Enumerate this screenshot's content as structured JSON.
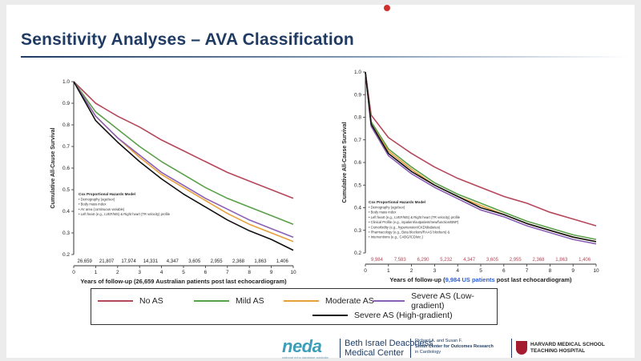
{
  "slide": {
    "title": "Sensitivity Analyses – AVA Classification"
  },
  "legend": {
    "items": [
      {
        "label": "No AS",
        "color": "#b5475a"
      },
      {
        "label": "Mild AS",
        "color": "#5aa04a"
      },
      {
        "label": "Moderate AS",
        "color": "#e6a03a"
      },
      {
        "label": "Severe AS (Low-gradient)",
        "color": "#8a5fb5"
      },
      {
        "label": "Severe AS (High-gradient)",
        "color": "#111111"
      }
    ]
  },
  "footer": {
    "neda": "neda",
    "neda_sub": "national echo database australia",
    "bidmc": [
      "Beth Israel Deaconess",
      "Medical Center"
    ],
    "smith": [
      "Richard A. and Susan F.",
      "Smith Center for Outcomes Research",
      "in Cardiology"
    ],
    "harvard": [
      "HARVARD MEDICAL SCHOOL",
      "TEACHING HOSPITAL"
    ]
  },
  "chart_data": [
    {
      "type": "line",
      "xlabel": "Years of follow-up (26,659 Australian patients post last echocardiogram)",
      "ylabel": "Cumulative All-Cause Survival",
      "xlim": [
        0,
        10
      ],
      "ylim": [
        0.2,
        1.0
      ],
      "xticks": [
        "0",
        "1",
        "2",
        "3",
        "4",
        "5",
        "6",
        "7",
        "8",
        "9",
        "10"
      ],
      "yticks": [
        "0.2",
        "0.3",
        "0.4",
        "0.5",
        "0.6",
        "0.7",
        "0.8",
        "0.9",
        "1.0"
      ],
      "at_risk": [
        "26,659",
        "21,807",
        "17,974",
        "14,331",
        "4,347",
        "3,605",
        "2,955",
        "2,368",
        "1,863",
        "1,406"
      ],
      "model_box": {
        "title": "Cox Proportional Hazards Model",
        "lines": [
          "• Demography (age/sex)",
          "• Body mass index",
          "• AV area (continuous variable)",
          "• Left heart (e.g., LVEF/MS) & Right heart (TR velocity) profile"
        ]
      },
      "series": [
        {
          "name": "No AS",
          "color": "#b5475a",
          "x": [
            0,
            1,
            2,
            3,
            4,
            5,
            6,
            7,
            8,
            9,
            10
          ],
          "y": [
            1.0,
            0.9,
            0.84,
            0.79,
            0.73,
            0.68,
            0.63,
            0.58,
            0.54,
            0.5,
            0.46
          ]
        },
        {
          "name": "Mild AS",
          "color": "#5aa04a",
          "x": [
            0,
            1,
            2,
            3,
            4,
            5,
            6,
            7,
            8,
            9,
            10
          ],
          "y": [
            1.0,
            0.86,
            0.78,
            0.7,
            0.63,
            0.57,
            0.51,
            0.46,
            0.42,
            0.38,
            0.34
          ]
        },
        {
          "name": "Moderate AS",
          "color": "#e6a03a",
          "x": [
            0,
            1,
            2,
            3,
            4,
            5,
            6,
            7,
            8,
            9,
            10
          ],
          "y": [
            1.0,
            0.84,
            0.74,
            0.65,
            0.57,
            0.51,
            0.45,
            0.39,
            0.34,
            0.3,
            0.26
          ]
        },
        {
          "name": "Severe AS (Low-gradient)",
          "color": "#8a5fb5",
          "x": [
            0,
            1,
            2,
            3,
            4,
            5,
            6,
            7,
            8,
            9,
            10
          ],
          "y": [
            1.0,
            0.84,
            0.74,
            0.66,
            0.58,
            0.52,
            0.46,
            0.41,
            0.36,
            0.32,
            0.28
          ]
        },
        {
          "name": "Severe AS (High-gradient)",
          "color": "#111111",
          "x": [
            0,
            1,
            2,
            3,
            4,
            5,
            6,
            7,
            8,
            9,
            10
          ],
          "y": [
            1.0,
            0.82,
            0.72,
            0.63,
            0.55,
            0.48,
            0.42,
            0.36,
            0.31,
            0.27,
            0.22
          ]
        }
      ]
    },
    {
      "type": "line",
      "xlabel": "Years of follow-up (9,984 US patients post last echocardiogram)",
      "xlabel_parts": [
        "Years of follow-up (",
        "9,984 US patients",
        " post last echocardiogram)"
      ],
      "ylabel": "Cumulative All-Cause Survival",
      "xlim": [
        0,
        10
      ],
      "ylim": [
        0.2,
        1.0
      ],
      "xticks": [
        "0",
        "1",
        "2",
        "3",
        "4",
        "5",
        "6",
        "7",
        "8",
        "9",
        "10"
      ],
      "yticks": [
        "0.2",
        "0.3",
        "0.4",
        "0.5",
        "0.6",
        "0.7",
        "0.8",
        "0.9",
        "1.0"
      ],
      "at_risk": [
        "9,984",
        "7,583",
        "6,290",
        "5,232",
        "4,347",
        "3,605",
        "2,955",
        "2,368",
        "1,863",
        "1,406"
      ],
      "model_box": {
        "title": "Cox Proportional Hazards Model",
        "lines": [
          "• Demography (age/sex)",
          "• Body mass index",
          "• Left heart (e.g., LVEF/MS) & Right heart (TR velocity) profile",
          "• Clinical Profile (e.g., inpatient/outpatient/new/function/BNP)",
          "• Comorbidity (e.g., hypertension/CKD/diabetes)",
          "• Pharmacology (e.g., Beta blockers/RAAS blockers) &",
          "• Interventions (e.g., CABG/ICD/etc.)"
        ]
      },
      "series": [
        {
          "name": "No AS",
          "color": "#b5475a",
          "x": [
            0,
            0.25,
            1,
            2,
            3,
            4,
            5,
            6,
            7,
            8,
            9,
            10
          ],
          "y": [
            1.0,
            0.81,
            0.71,
            0.64,
            0.58,
            0.53,
            0.49,
            0.45,
            0.42,
            0.38,
            0.35,
            0.32
          ]
        },
        {
          "name": "Mild AS",
          "color": "#5aa04a",
          "x": [
            0,
            0.25,
            1,
            2,
            3,
            4,
            5,
            6,
            7,
            8,
            9,
            10
          ],
          "y": [
            1.0,
            0.78,
            0.66,
            0.58,
            0.51,
            0.46,
            0.42,
            0.38,
            0.34,
            0.31,
            0.28,
            0.26
          ]
        },
        {
          "name": "Moderate AS",
          "color": "#e6a03a",
          "x": [
            0,
            0.25,
            1,
            2,
            3,
            4,
            5,
            6,
            7,
            8,
            9,
            10
          ],
          "y": [
            1.0,
            0.77,
            0.65,
            0.57,
            0.5,
            0.45,
            0.41,
            0.37,
            0.33,
            0.3,
            0.27,
            0.25
          ]
        },
        {
          "name": "Severe AS (Low-gradient)",
          "color": "#8a5fb5",
          "x": [
            0,
            0.25,
            1,
            2,
            3,
            4,
            5,
            6,
            7,
            8,
            9,
            10
          ],
          "y": [
            1.0,
            0.76,
            0.63,
            0.55,
            0.49,
            0.44,
            0.39,
            0.36,
            0.32,
            0.29,
            0.26,
            0.24
          ]
        },
        {
          "name": "Severe AS (High-gradient)",
          "color": "#111111",
          "x": [
            0,
            0.25,
            1,
            2,
            3,
            4,
            5,
            6,
            7,
            8,
            9,
            10
          ],
          "y": [
            1.0,
            0.77,
            0.64,
            0.56,
            0.5,
            0.45,
            0.4,
            0.37,
            0.33,
            0.3,
            0.27,
            0.25
          ]
        }
      ]
    }
  ]
}
